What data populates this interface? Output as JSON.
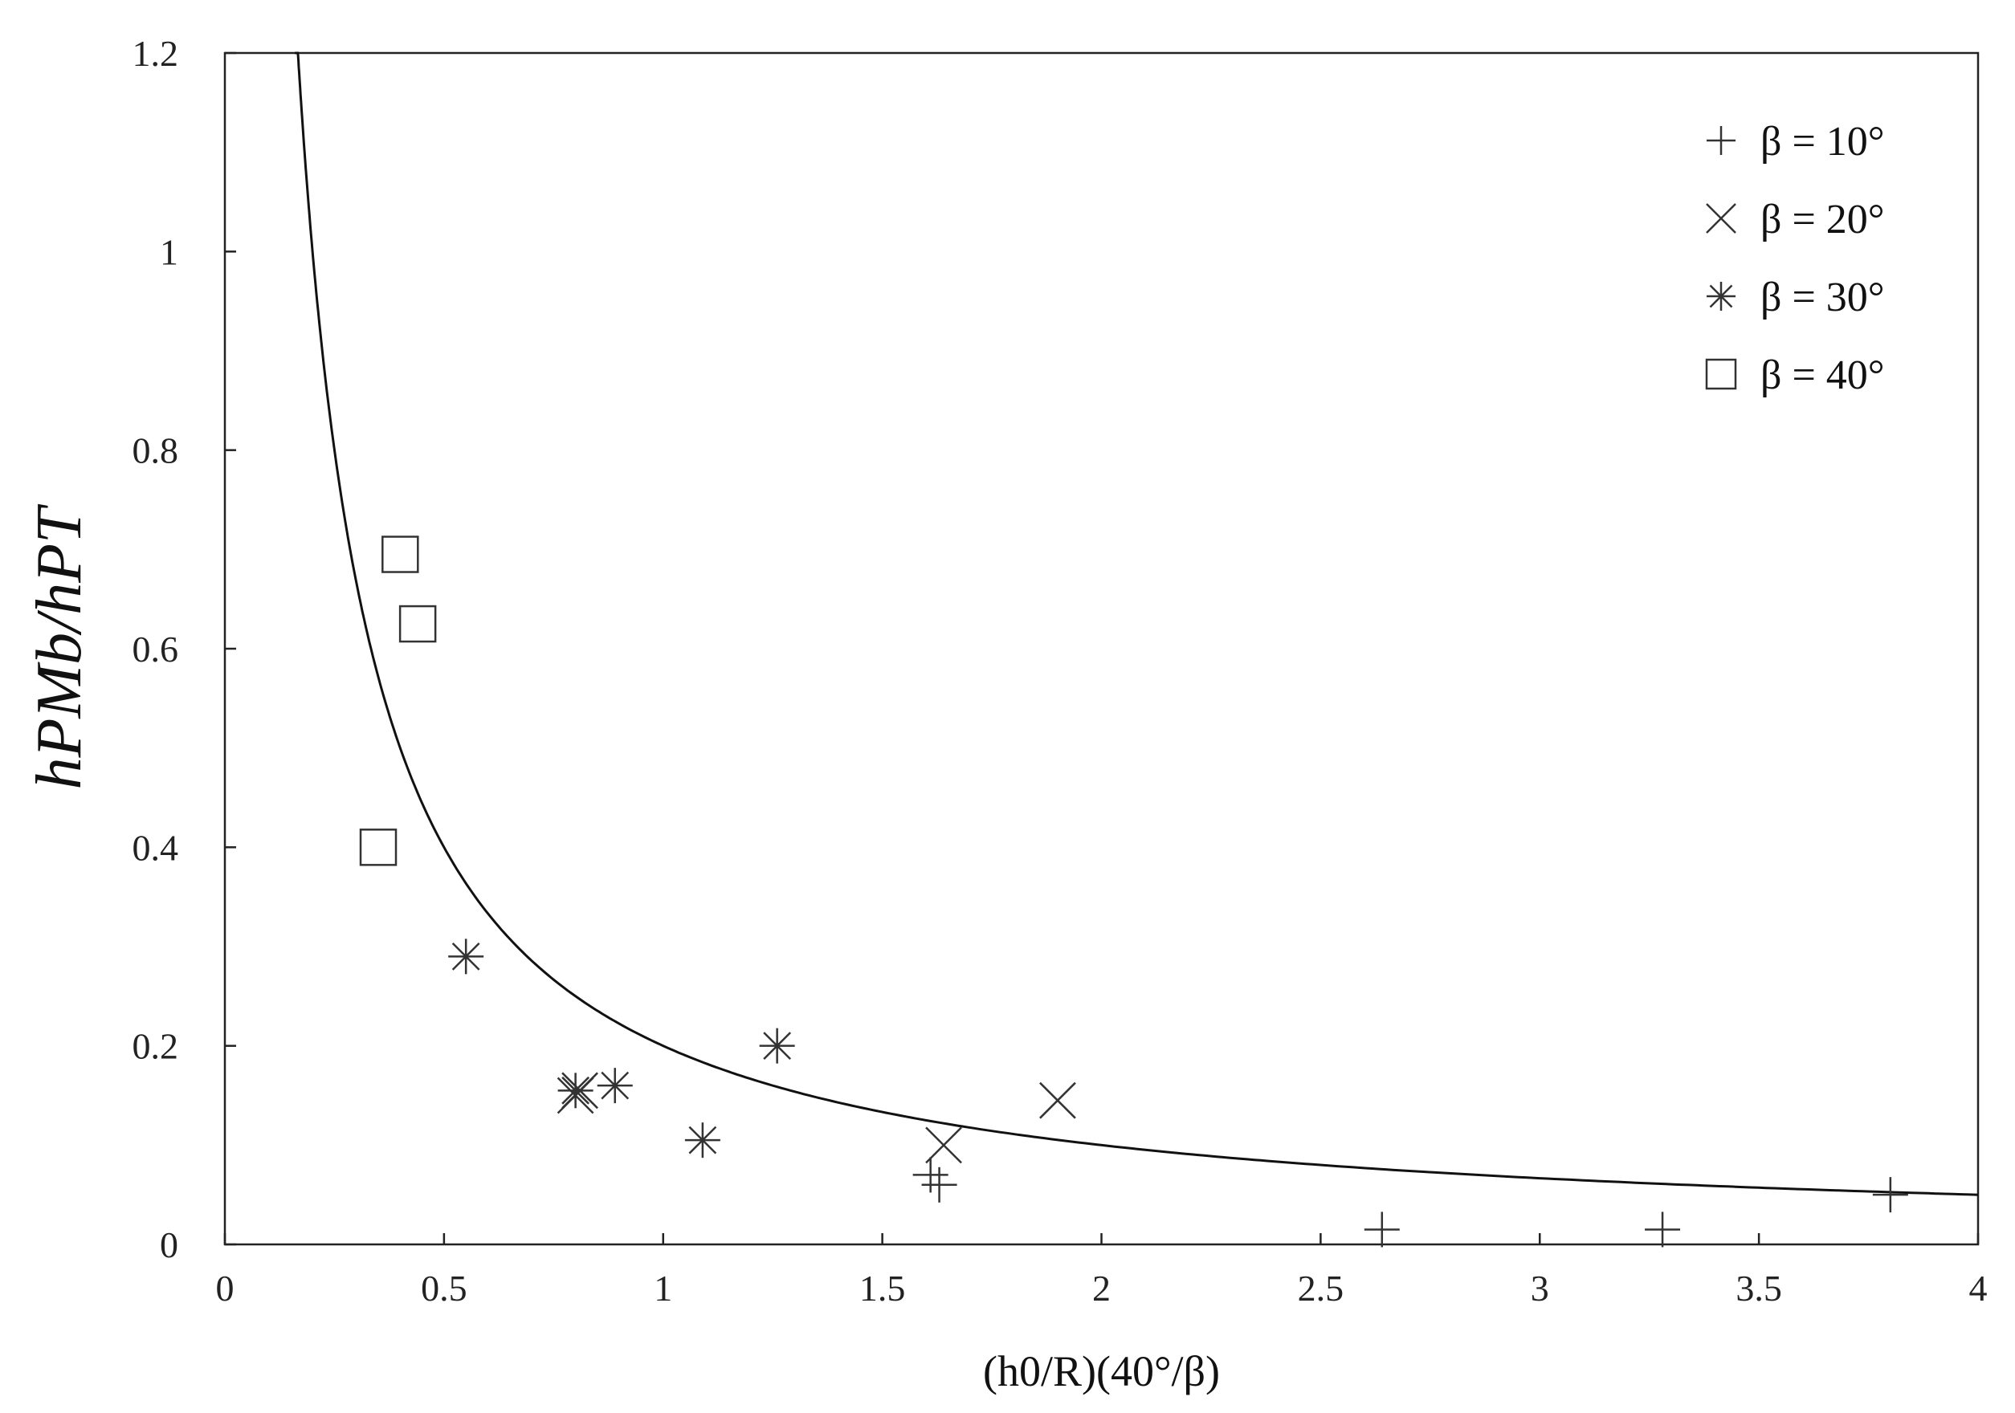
{
  "chart_data": {
    "type": "scatter",
    "xlabel": "(h0/R)(40°/β)",
    "ylabel": "hPMb/hPT",
    "xlim": [
      0,
      4
    ],
    "ylim": [
      0,
      1.2
    ],
    "x_ticks": [
      0,
      0.5,
      1,
      1.5,
      2,
      2.5,
      3,
      3.5,
      4
    ],
    "x_tick_labels": [
      "0",
      "0.5",
      "1",
      "1.5",
      "2",
      "2.5",
      "3",
      "3.5",
      "4"
    ],
    "y_ticks": [
      0,
      0.2,
      0.4,
      0.6,
      0.8,
      1,
      1.2
    ],
    "y_tick_labels": [
      "0",
      "0.2",
      "0.4",
      "0.6",
      "0.8",
      "1",
      "1.2"
    ],
    "grid": false,
    "legend_position": "top-right",
    "series": [
      {
        "name": "β = 10°",
        "marker": "plus",
        "points": [
          [
            1.61,
            0.07
          ],
          [
            1.63,
            0.06
          ],
          [
            2.64,
            0.015
          ],
          [
            3.28,
            0.015
          ],
          [
            3.8,
            0.05
          ]
        ]
      },
      {
        "name": "β = 20°",
        "marker": "x",
        "points": [
          [
            0.8,
            0.15
          ],
          [
            0.81,
            0.155
          ],
          [
            1.64,
            0.1
          ],
          [
            1.9,
            0.145
          ]
        ]
      },
      {
        "name": "β = 30°",
        "marker": "asterisk",
        "points": [
          [
            0.55,
            0.29
          ],
          [
            0.8,
            0.155
          ],
          [
            0.89,
            0.16
          ],
          [
            1.09,
            0.105
          ],
          [
            1.26,
            0.2
          ]
        ]
      },
      {
        "name": "β = 40°",
        "marker": "square",
        "points": [
          [
            0.35,
            0.4
          ],
          [
            0.4,
            0.695
          ],
          [
            0.44,
            0.625
          ]
        ]
      }
    ],
    "fit_curve": {
      "type": "line",
      "function": "y = 0.2 / x",
      "x_range": [
        0.16,
        4
      ]
    }
  }
}
